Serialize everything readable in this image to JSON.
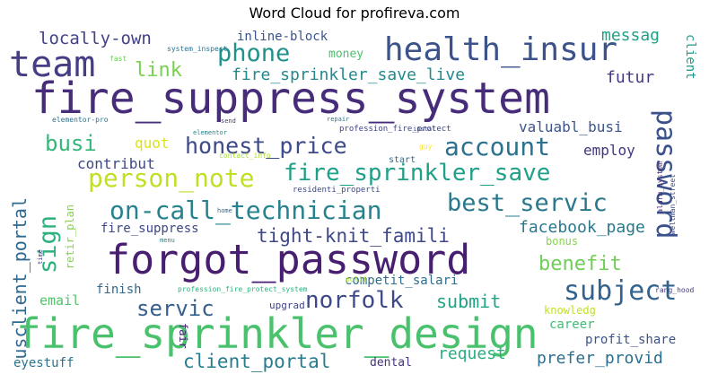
{
  "title": "Word Cloud for profireva.com",
  "words": [
    {
      "text": "fire_suppress_system",
      "color": "#472c7a"
    },
    {
      "text": "fire_sprinkler_design",
      "color": "#4ac16d"
    },
    {
      "text": "forgot_password",
      "color": "#481f70"
    },
    {
      "text": "health_insur",
      "color": "#3b528b"
    },
    {
      "text": "team",
      "color": "#433e85"
    },
    {
      "text": "password",
      "color": "#3b518b"
    },
    {
      "text": "on-call_technician",
      "color": "#26828e"
    },
    {
      "text": "fire_sprinkler_save",
      "color": "#1fa088"
    },
    {
      "text": "person_note",
      "color": "#c2df23"
    },
    {
      "text": "account",
      "color": "#2c728e"
    },
    {
      "text": "subject",
      "color": "#33638d"
    },
    {
      "text": "honest_price",
      "color": "#3e4a89"
    },
    {
      "text": "best_servic",
      "color": "#2a788e"
    },
    {
      "text": "sign",
      "color": "#2db27d"
    },
    {
      "text": "phone",
      "color": "#21918c"
    },
    {
      "text": "norfolk",
      "color": "#3e4989"
    },
    {
      "text": "tight-knit_famili",
      "color": "#3f4889"
    },
    {
      "text": "busi",
      "color": "#35b779"
    },
    {
      "text": "servic",
      "color": "#355f8d"
    },
    {
      "text": "benefit",
      "color": "#6ece58"
    },
    {
      "text": "client_portal",
      "color": "#287c8e"
    },
    {
      "text": "usclient_portal",
      "color": "#31688e"
    },
    {
      "text": "locally-own",
      "color": "#414287"
    },
    {
      "text": "link",
      "color": "#7ad151"
    },
    {
      "text": "fire_sprinkler_save_live",
      "color": "#23898e"
    },
    {
      "text": "submit",
      "color": "#20a386"
    },
    {
      "text": "facebook_page",
      "color": "#2a788e"
    },
    {
      "text": "prefer_provid",
      "color": "#2e6e8e"
    },
    {
      "text": "request",
      "color": "#29af7f"
    },
    {
      "text": "valuabl_busi",
      "color": "#3a548c"
    },
    {
      "text": "messag",
      "color": "#1fa188"
    },
    {
      "text": "futur",
      "color": "#443a83"
    },
    {
      "text": "contribut",
      "color": "#3f4788"
    },
    {
      "text": "quot",
      "color": "#dde318"
    },
    {
      "text": "employ",
      "color": "#453581"
    },
    {
      "text": "inline-block",
      "color": "#3a538b"
    },
    {
      "text": "fire_suppress",
      "color": "#3f4788"
    },
    {
      "text": "email",
      "color": "#52c569"
    },
    {
      "text": "finish",
      "color": "#31688e"
    },
    {
      "text": "competit_salari",
      "color": "#2e6d8e"
    },
    {
      "text": "career",
      "color": "#3fbc73"
    },
    {
      "text": "profit_share",
      "color": "#3b528b"
    },
    {
      "text": "eyestuff",
      "color": "#2c738e"
    },
    {
      "text": "dental",
      "color": "#46327e"
    },
    {
      "text": "knowledg",
      "color": "#c0df25"
    },
    {
      "text": "bonus",
      "color": "#86d549"
    },
    {
      "text": "money",
      "color": "#4ac16d"
    },
    {
      "text": "client",
      "color": "#1e9b8a"
    },
    {
      "text": "retir_plan",
      "color": "#84d44b"
    },
    {
      "text": "upgrad",
      "color": "#414487"
    },
    {
      "text": "fair",
      "color": "#482475"
    },
    {
      "text": "start",
      "color": "#31688e"
    },
    {
      "text": "profession_fire_protect",
      "color": "#414487"
    },
    {
      "text": "system_inspect",
      "color": "#2c728e"
    },
    {
      "text": "fast",
      "color": "#6ece58"
    },
    {
      "text": "elementor-pro",
      "color": "#2c728e"
    },
    {
      "text": "elementor",
      "color": "#25858e"
    },
    {
      "text": "send",
      "color": "#433e85"
    },
    {
      "text": "repair",
      "color": "#287d8e"
    },
    {
      "text": "instal",
      "color": "#3b528b"
    },
    {
      "text": "guy",
      "color": "#fde725"
    },
    {
      "text": "contact_info",
      "color": "#a8db34"
    },
    {
      "text": "residenti_properti",
      "color": "#3e4a89"
    },
    {
      "text": "alarm_system",
      "color": "#482878"
    },
    {
      "text": "wellman_street",
      "color": "#3e4a89"
    },
    {
      "text": "home",
      "color": "#31688e"
    },
    {
      "text": "menu",
      "color": "#26828e"
    },
    {
      "text": "time",
      "color": "#453781"
    },
    {
      "text": "profession_fire_protect_system",
      "color": "#2db27d"
    },
    {
      "text": "polit",
      "color": "#b5de2b"
    },
    {
      "text": "rang_hood",
      "color": "#453882"
    }
  ]
}
